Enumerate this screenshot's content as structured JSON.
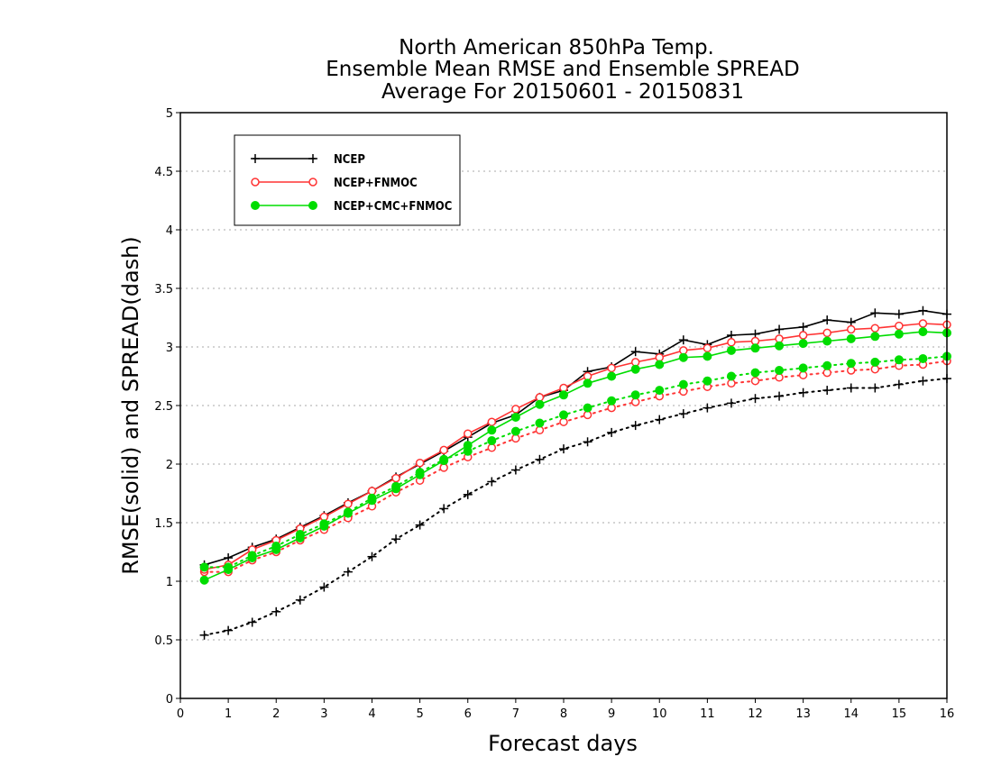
{
  "chart_data": {
    "type": "line",
    "title": [
      "North American 850hPa Temp.",
      "Ensemble Mean RMSE and Ensemble SPREAD",
      "Average For 20150601 - 20150831"
    ],
    "xlabel": "Forecast days",
    "ylabel": "RMSE(solid) and SPREAD(dash)",
    "xlim": [
      0,
      16
    ],
    "ylim": [
      0,
      5
    ],
    "xticks": [
      "0",
      "1",
      "2",
      "3",
      "4",
      "5",
      "6",
      "7",
      "8",
      "9",
      "10",
      "11",
      "12",
      "13",
      "14",
      "15",
      "16"
    ],
    "yticks": [
      "0",
      "0.5",
      "1",
      "1.5",
      "2",
      "2.5",
      "3",
      "3.5",
      "4",
      "4.5",
      "5"
    ],
    "grid": "horizontal dotted",
    "legend_position": "top-left",
    "x": [
      0.5,
      1,
      1.5,
      2,
      2.5,
      3,
      3.5,
      4,
      4.5,
      5,
      5.5,
      6,
      6.5,
      7,
      7.5,
      8,
      8.5,
      9,
      9.5,
      10,
      10.5,
      11,
      11.5,
      12,
      12.5,
      13,
      13.5,
      14,
      14.5,
      15,
      15.5,
      16
    ],
    "series": [
      {
        "name": "NCEP",
        "color": "#000000",
        "marker": "plus",
        "rmse": [
          1.14,
          1.2,
          1.29,
          1.36,
          1.46,
          1.56,
          1.67,
          1.77,
          1.89,
          2.0,
          2.11,
          2.23,
          2.35,
          2.42,
          2.57,
          2.63,
          2.79,
          2.83,
          2.96,
          2.94,
          3.06,
          3.02,
          3.1,
          3.11,
          3.15,
          3.17,
          3.23,
          3.21,
          3.29,
          3.28,
          3.31,
          3.28
        ],
        "spread": [
          0.54,
          0.58,
          0.65,
          0.74,
          0.84,
          0.95,
          1.08,
          1.21,
          1.36,
          1.48,
          1.62,
          1.74,
          1.85,
          1.95,
          2.04,
          2.13,
          2.19,
          2.27,
          2.33,
          2.38,
          2.43,
          2.48,
          2.52,
          2.56,
          2.58,
          2.61,
          2.63,
          2.65,
          2.65,
          2.68,
          2.71,
          2.73
        ]
      },
      {
        "name": "NCEP+FNMOC",
        "color": "#ff3333",
        "marker": "open-circle",
        "rmse": [
          1.1,
          1.14,
          1.27,
          1.35,
          1.45,
          1.55,
          1.66,
          1.77,
          1.88,
          2.01,
          2.12,
          2.26,
          2.36,
          2.47,
          2.57,
          2.65,
          2.75,
          2.82,
          2.87,
          2.91,
          2.97,
          2.99,
          3.04,
          3.05,
          3.07,
          3.1,
          3.12,
          3.15,
          3.16,
          3.18,
          3.2,
          3.19
        ],
        "spread": [
          1.08,
          1.08,
          1.18,
          1.25,
          1.35,
          1.44,
          1.54,
          1.64,
          1.76,
          1.86,
          1.97,
          2.06,
          2.14,
          2.22,
          2.29,
          2.36,
          2.42,
          2.48,
          2.53,
          2.58,
          2.62,
          2.66,
          2.69,
          2.71,
          2.74,
          2.76,
          2.78,
          2.8,
          2.81,
          2.84,
          2.85,
          2.88
        ]
      },
      {
        "name": "NCEP+CMC+FNMOC",
        "color": "#00dd00",
        "marker": "filled-circle",
        "rmse": [
          1.01,
          1.1,
          1.2,
          1.27,
          1.37,
          1.47,
          1.58,
          1.69,
          1.79,
          1.91,
          2.03,
          2.16,
          2.29,
          2.4,
          2.51,
          2.59,
          2.69,
          2.75,
          2.81,
          2.85,
          2.91,
          2.92,
          2.97,
          2.99,
          3.01,
          3.03,
          3.05,
          3.07,
          3.09,
          3.11,
          3.13,
          3.12
        ],
        "spread": [
          1.12,
          1.12,
          1.22,
          1.3,
          1.4,
          1.49,
          1.59,
          1.71,
          1.81,
          1.93,
          2.04,
          2.11,
          2.2,
          2.28,
          2.35,
          2.42,
          2.48,
          2.54,
          2.59,
          2.63,
          2.68,
          2.71,
          2.75,
          2.78,
          2.8,
          2.82,
          2.84,
          2.86,
          2.87,
          2.89,
          2.9,
          2.92
        ]
      }
    ]
  }
}
